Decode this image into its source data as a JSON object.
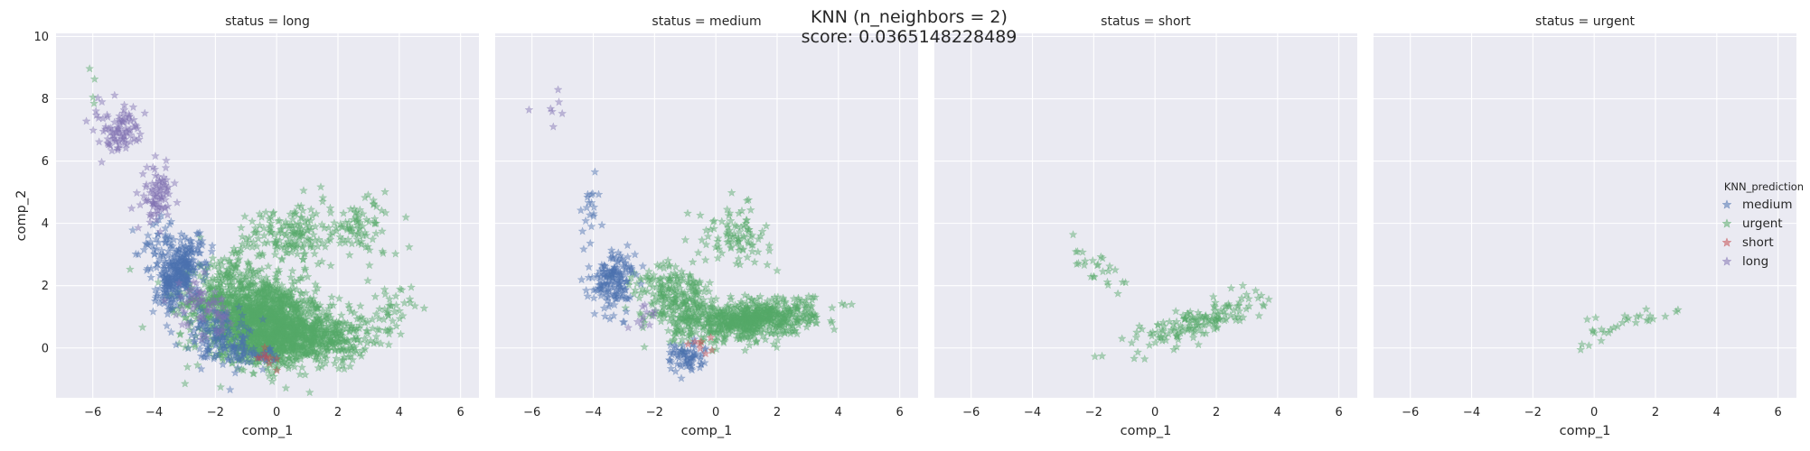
{
  "chart_data": {
    "type": "scatter",
    "title": "KNN (n_neighbors = 2)",
    "subtitle": "score: 0.0365148228489",
    "xlabel": "comp_1",
    "ylabel": "comp_2",
    "xlim": [
      -7.2,
      6.6
    ],
    "ylim": [
      -1.6,
      10.1
    ],
    "xticks": [
      -6,
      -4,
      -2,
      0,
      2,
      4,
      6
    ],
    "yticks": [
      0,
      2,
      4,
      6,
      8,
      10
    ],
    "grid": true,
    "marker": "star",
    "legend": {
      "title": "KNN_prediction",
      "placement": "right",
      "entries": [
        {
          "label": "medium",
          "color": "#4C72B0"
        },
        {
          "label": "urgent",
          "color": "#55A868"
        },
        {
          "label": "short",
          "color": "#C44E52"
        },
        {
          "label": "long",
          "color": "#8172B2"
        }
      ]
    },
    "facets": [
      {
        "title": "status = long",
        "clusters": [
          {
            "class": "urgent",
            "n": 1500,
            "cx": -0.6,
            "cy": 1.0,
            "sx": 1.1,
            "sy": 0.65,
            "rot": -0.28
          },
          {
            "class": "urgent",
            "n": 700,
            "cx": 0.6,
            "cy": 0.3,
            "sx": 1.2,
            "sy": 0.4,
            "rot": 0.05
          },
          {
            "class": "urgent",
            "n": 180,
            "cx": 0.4,
            "cy": 3.6,
            "sx": 0.9,
            "sy": 0.5,
            "rot": 0.1
          },
          {
            "class": "urgent",
            "n": 70,
            "cx": 2.8,
            "cy": 3.9,
            "sx": 0.6,
            "sy": 0.5,
            "rot": 0
          },
          {
            "class": "urgent",
            "n": 40,
            "cx": 3.6,
            "cy": 1.2,
            "sx": 0.4,
            "sy": 0.4,
            "rot": 0
          },
          {
            "class": "urgent",
            "n": 30,
            "cx": -1.6,
            "cy": 2.6,
            "sx": 0.4,
            "sy": 0.3,
            "rot": 0
          },
          {
            "class": "urgent",
            "n": 4,
            "cx": -6.0,
            "cy": 8.3,
            "sx": 0.3,
            "sy": 0.6,
            "rot": 0
          },
          {
            "class": "medium",
            "n": 320,
            "cx": -3.2,
            "cy": 2.4,
            "sx": 0.35,
            "sy": 0.55,
            "rot": -0.4
          },
          {
            "class": "medium",
            "n": 150,
            "cx": -1.9,
            "cy": 0.3,
            "sx": 0.6,
            "sy": 0.4,
            "rot": -0.4
          },
          {
            "class": "medium",
            "n": 40,
            "cx": -3.9,
            "cy": 3.4,
            "sx": 0.3,
            "sy": 0.4,
            "rot": 0
          },
          {
            "class": "medium",
            "n": 35,
            "cx": -0.6,
            "cy": -0.3,
            "sx": 0.4,
            "sy": 0.15,
            "rot": 0
          },
          {
            "class": "long",
            "n": 90,
            "cx": -5.1,
            "cy": 7.0,
            "sx": 0.4,
            "sy": 0.35,
            "rot": -0.6
          },
          {
            "class": "long",
            "n": 80,
            "cx": -3.9,
            "cy": 4.9,
            "sx": 0.25,
            "sy": 0.45,
            "rot": 0
          },
          {
            "class": "long",
            "n": 70,
            "cx": -2.4,
            "cy": 1.3,
            "sx": 0.45,
            "sy": 0.35,
            "rot": -0.4
          },
          {
            "class": "short",
            "n": 10,
            "cx": -0.3,
            "cy": -0.3,
            "sx": 0.3,
            "sy": 0.12,
            "rot": 0
          }
        ]
      },
      {
        "title": "status = medium",
        "clusters": [
          {
            "class": "urgent",
            "n": 650,
            "cx": 1.2,
            "cy": 0.9,
            "sx": 1.0,
            "sy": 0.3,
            "rot": 0.12
          },
          {
            "class": "urgent",
            "n": 250,
            "cx": -1.1,
            "cy": 1.4,
            "sx": 0.6,
            "sy": 0.5,
            "rot": -0.5
          },
          {
            "class": "urgent",
            "n": 90,
            "cx": 0.6,
            "cy": 3.6,
            "sx": 0.6,
            "sy": 0.45,
            "rot": 0
          },
          {
            "class": "urgent",
            "n": 40,
            "cx": -2.0,
            "cy": 2.2,
            "sx": 0.5,
            "sy": 0.3,
            "rot": 0
          },
          {
            "class": "medium",
            "n": 160,
            "cx": -3.3,
            "cy": 2.2,
            "sx": 0.35,
            "sy": 0.45,
            "rot": -0.3
          },
          {
            "class": "medium",
            "n": 70,
            "cx": -1.0,
            "cy": -0.3,
            "sx": 0.3,
            "sy": 0.25,
            "rot": 0
          },
          {
            "class": "medium",
            "n": 20,
            "cx": -4.1,
            "cy": 4.4,
            "sx": 0.2,
            "sy": 0.6,
            "rot": 0
          },
          {
            "class": "long",
            "n": 7,
            "cx": -5.4,
            "cy": 7.3,
            "sx": 0.35,
            "sy": 0.3,
            "rot": 0
          },
          {
            "class": "long",
            "n": 12,
            "cx": -2.4,
            "cy": 1.0,
            "sx": 0.3,
            "sy": 0.3,
            "rot": 0
          },
          {
            "class": "short",
            "n": 8,
            "cx": -0.3,
            "cy": 0.0,
            "sx": 0.3,
            "sy": 0.25,
            "rot": 0
          }
        ]
      },
      {
        "title": "status = short",
        "clusters": [
          {
            "class": "urgent",
            "n": 150,
            "cx": 1.3,
            "cy": 0.8,
            "sx": 1.1,
            "sy": 0.25,
            "rot": 0.32
          },
          {
            "class": "urgent",
            "n": 25,
            "cx": -1.8,
            "cy": 2.5,
            "sx": 0.5,
            "sy": 0.35,
            "rot": -0.4
          }
        ]
      },
      {
        "title": "status = urgent",
        "clusters": [
          {
            "class": "urgent",
            "n": 30,
            "cx": 1.3,
            "cy": 0.9,
            "sx": 0.8,
            "sy": 0.2,
            "rot": 0.3
          }
        ]
      }
    ]
  }
}
